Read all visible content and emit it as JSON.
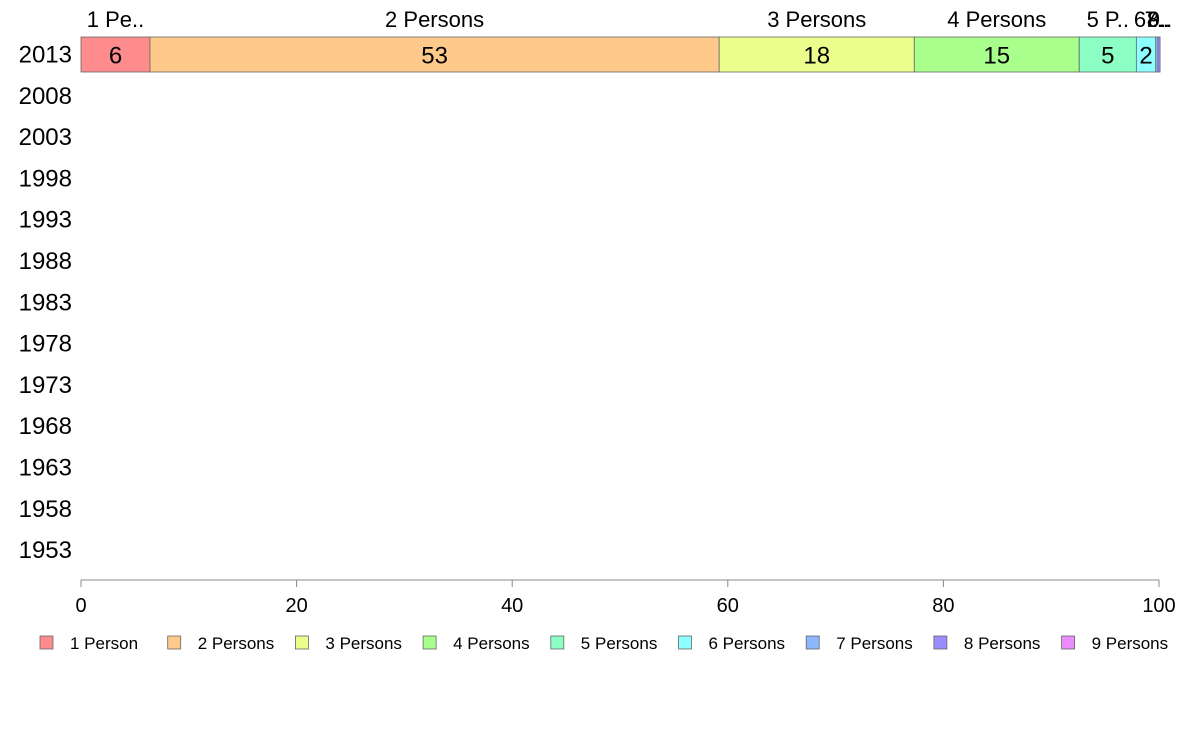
{
  "chart_data": {
    "type": "bar",
    "orientation": "horizontal",
    "stacked": true,
    "categories": [
      "2013",
      "2008",
      "2003",
      "1998",
      "1993",
      "1988",
      "1983",
      "1978",
      "1973",
      "1968",
      "1963",
      "1958",
      "1953"
    ],
    "series": [
      {
        "name": "1 Person",
        "header_label": "1 Pe..",
        "segment_label": "6",
        "color": "#ff8c8c",
        "values": [
          6.4,
          null,
          null,
          null,
          null,
          null,
          null,
          null,
          null,
          null,
          null,
          null,
          null
        ]
      },
      {
        "name": "2 Persons",
        "header_label": "2 Persons",
        "segment_label": "53",
        "color": "#ffc98c",
        "values": [
          52.8,
          null,
          null,
          null,
          null,
          null,
          null,
          null,
          null,
          null,
          null,
          null,
          null
        ]
      },
      {
        "name": "3 Persons",
        "header_label": "3 Persons",
        "segment_label": "18",
        "color": "#ecff8c",
        "values": [
          18.1,
          null,
          null,
          null,
          null,
          null,
          null,
          null,
          null,
          null,
          null,
          null,
          null
        ]
      },
      {
        "name": "4 Persons",
        "header_label": "4 Persons",
        "segment_label": "15",
        "color": "#a8ff8c",
        "values": [
          15.3,
          null,
          null,
          null,
          null,
          null,
          null,
          null,
          null,
          null,
          null,
          null,
          null
        ]
      },
      {
        "name": "5 Persons",
        "header_label": "5 P..",
        "segment_label": "5",
        "color": "#8cffc4",
        "values": [
          5.3,
          null,
          null,
          null,
          null,
          null,
          null,
          null,
          null,
          null,
          null,
          null,
          null
        ]
      },
      {
        "name": "6 Persons",
        "header_label": "6..",
        "segment_label": "2",
        "color": "#8cffff",
        "values": [
          1.8,
          null,
          null,
          null,
          null,
          null,
          null,
          null,
          null,
          null,
          null,
          null,
          null
        ]
      },
      {
        "name": "7 Persons",
        "header_label": "7..",
        "segment_label": "",
        "color": "#8cb8ff",
        "values": [
          0.2,
          null,
          null,
          null,
          null,
          null,
          null,
          null,
          null,
          null,
          null,
          null,
          null
        ]
      },
      {
        "name": "8 Persons",
        "header_label": "8..",
        "segment_label": "",
        "color": "#9b8cff",
        "values": [
          0.2,
          null,
          null,
          null,
          null,
          null,
          null,
          null,
          null,
          null,
          null,
          null,
          null
        ]
      },
      {
        "name": "9 Persons",
        "header_label": "9..",
        "segment_label": "",
        "color": "#ec8cff",
        "values": [
          0.0,
          null,
          null,
          null,
          null,
          null,
          null,
          null,
          null,
          null,
          null,
          null,
          null
        ]
      }
    ],
    "xlim": [
      0,
      100
    ],
    "xticks": [
      0,
      20,
      40,
      60,
      80,
      100
    ],
    "xlabel": "",
    "ylabel": "",
    "title": "",
    "grid": false,
    "legend_position": "bottom"
  }
}
